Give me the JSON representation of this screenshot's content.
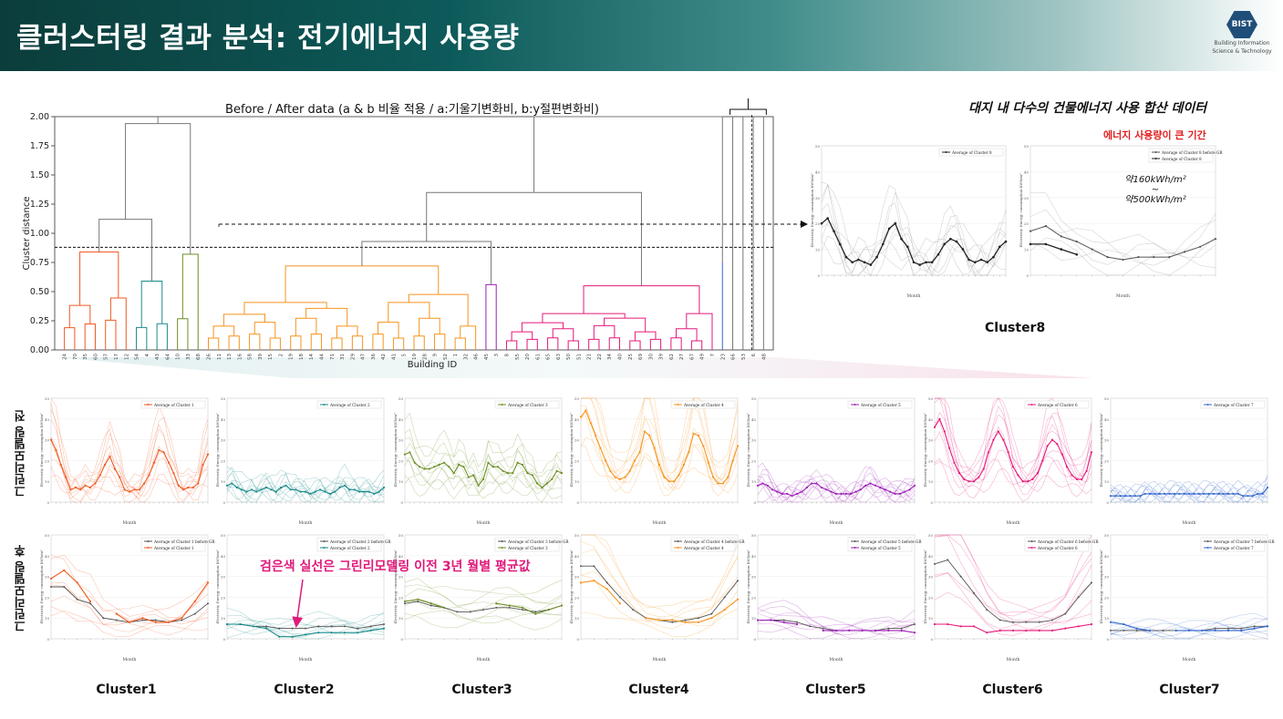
{
  "header": {
    "title": "클러스터링 결과 분석: 전기에너지 사용량",
    "logo_text": "BIST",
    "logo_line1": "Building Information",
    "logo_line2": "Science & Technology"
  },
  "annotations": {
    "site_data": "대지 내 다수의 건물에너지 사용 합산 데이터",
    "high_usage_period": "에너지 사용량이 큰 기간",
    "range_top": "약160kWh/m²",
    "range_tilde": "~",
    "range_bottom": "약500kWh/m²",
    "black_line_note": "검은색 실선은 그린리모델링 이전 3년 월별 평균값",
    "row_before": "그린리모델링 전",
    "row_after": "그린리모델링 후"
  },
  "cluster_labels": [
    "Cluster1",
    "Cluster2",
    "Cluster3",
    "Cluster4",
    "Cluster5",
    "Cluster6",
    "Cluster7"
  ],
  "cluster8_label": "Cluster8",
  "colors": {
    "c1": "#f05a22",
    "c2": "#1a8a8a",
    "c3": "#6b8e23",
    "c4": "#f7941d",
    "c5": "#9b1fb5",
    "c6": "#e6197a",
    "c7": "#3366cc",
    "c8": "#222222",
    "before_gr": "#555555"
  },
  "chart_data": [
    {
      "type": "dendrogram",
      "title": "Before / After data (a & b 비율 적용 / a:기울기변화비, b:y절편변화비)",
      "xlabel": "Building ID",
      "ylabel": "Cluster distance",
      "ylim": [
        0,
        2.0
      ],
      "yticks": [
        "0.00",
        "0.25",
        "0.50",
        "0.75",
        "1.00",
        "1.25",
        "1.50",
        "1.75",
        "2.00"
      ],
      "cut_height": 0.88,
      "clusters": [
        {
          "name": "Cluster1",
          "color": "#f05a22",
          "merge_height": 0.84,
          "leaves": [
            "24",
            "70",
            "35",
            "60",
            "57",
            "17",
            "12"
          ]
        },
        {
          "name": "Cluster2",
          "color": "#1a8a8a",
          "merge_height": 0.59,
          "leaves": [
            "54",
            "4",
            "43",
            "64"
          ]
        },
        {
          "name": "Cluster3",
          "color": "#6b8e23",
          "merge_height": 0.82,
          "leaves": [
            "10",
            "33",
            "68"
          ]
        },
        {
          "name": "Cluster4",
          "color": "#f7941d",
          "merge_height": 0.72,
          "leaves": [
            "26",
            "11",
            "13",
            "16",
            "58",
            "39",
            "15",
            "2",
            "19",
            "18",
            "14",
            "44",
            "71",
            "31",
            "29",
            "47",
            "36",
            "42",
            "41",
            "5",
            "19",
            "28",
            "9",
            "52",
            "1",
            "32",
            "46"
          ]
        },
        {
          "name": "Cluster5",
          "color": "#9b1fb5",
          "merge_height": 0.56,
          "leaves": [
            "45",
            "3"
          ]
        },
        {
          "name": "Cluster6",
          "color": "#e6197a",
          "merge_height": 0.55,
          "leaves": [
            "8",
            "55",
            "20",
            "61",
            "65",
            "63",
            "50",
            "51",
            "21",
            "22",
            "34",
            "40",
            "25",
            "69",
            "30",
            "39",
            "62",
            "27",
            "67",
            "49",
            "7"
          ]
        },
        {
          "name": "Cluster7",
          "color": "#3366cc",
          "merge_height": 0.75,
          "leaves": [
            "23"
          ]
        },
        {
          "name": "Cluster8",
          "color": "#555555",
          "merge_height": 0.0,
          "leaves": [
            "66",
            "53",
            "6",
            "48"
          ]
        }
      ]
    },
    {
      "type": "line",
      "panel": "cluster8-before",
      "legend": [
        "Average of Cluster 8"
      ],
      "ylabel": "Electricity Energy consumption kWh/m²",
      "xlabel": "Month",
      "ylim": [
        0,
        50
      ],
      "series": [
        {
          "name": "Average of Cluster 8",
          "values": [
            20,
            22,
            17,
            12,
            7,
            5,
            6,
            5,
            4,
            7,
            12,
            18,
            20,
            14,
            11,
            5,
            4,
            5,
            5,
            8,
            12,
            14,
            13,
            10,
            6,
            5,
            6,
            5,
            7,
            11,
            13
          ]
        }
      ]
    },
    {
      "type": "line",
      "panel": "cluster8-after",
      "legend": [
        "Average of Cluster 8 before GR",
        "Average of Cluster 8"
      ],
      "ylabel": "Electricity Energy consumption kWh/m²",
      "xlabel": "Month",
      "ylim": [
        0,
        50
      ],
      "series": [
        {
          "name": "Average of Cluster 8 before GR",
          "values": [
            17,
            19,
            15,
            13,
            10,
            7,
            6,
            7,
            7,
            7,
            9,
            11,
            14
          ]
        },
        {
          "name": "Average of Cluster 8",
          "values": [
            12,
            12,
            10,
            8
          ]
        }
      ]
    },
    {
      "type": "line",
      "panels_before": [
        {
          "cluster": "Cluster1",
          "legend": "Average of Cluster 1",
          "values": [
            30,
            25,
            18,
            12,
            6,
            7,
            6,
            8,
            7,
            9,
            13,
            18,
            22,
            16,
            12,
            6,
            5,
            6,
            6,
            9,
            13,
            19,
            25,
            24,
            19,
            14,
            8,
            6,
            7,
            7,
            9,
            18,
            23
          ]
        },
        {
          "cluster": "Cluster2",
          "legend": "Average of Cluster 2",
          "values": [
            8,
            9,
            7,
            6,
            5,
            6,
            5,
            6,
            7,
            6,
            5,
            7,
            8,
            6,
            6,
            5,
            5,
            4,
            5,
            6,
            5,
            4,
            5,
            7,
            8,
            6,
            6,
            5,
            5,
            5,
            4,
            5,
            7
          ]
        },
        {
          "cluster": "Cluster3",
          "legend": "Average of Cluster 3",
          "values": [
            23,
            24,
            19,
            17,
            16,
            16,
            17,
            18,
            19,
            17,
            14,
            18,
            17,
            12,
            13,
            8,
            11,
            19,
            17,
            17,
            15,
            14,
            14,
            19,
            18,
            14,
            13,
            9,
            7,
            9,
            11,
            15,
            14
          ]
        },
        {
          "cluster": "Cluster4",
          "legend": "Average of Cluster 4",
          "values": [
            41,
            44,
            38,
            32,
            26,
            20,
            15,
            12,
            11,
            12,
            15,
            20,
            24,
            34,
            32,
            26,
            18,
            12,
            10,
            10,
            13,
            18,
            24,
            33,
            32,
            27,
            19,
            12,
            9,
            9,
            12,
            20,
            27
          ]
        },
        {
          "cluster": "Cluster5",
          "legend": "Average of Cluster 5",
          "values": [
            8,
            9,
            8,
            6,
            5,
            4,
            4,
            3,
            4,
            5,
            7,
            9,
            9,
            7,
            6,
            5,
            4,
            4,
            4,
            4,
            5,
            6,
            8,
            9,
            8,
            7,
            6,
            5,
            4,
            4,
            5,
            6,
            8
          ]
        },
        {
          "cluster": "Cluster6",
          "legend": "Average of Cluster 6",
          "values": [
            36,
            40,
            34,
            26,
            19,
            14,
            11,
            10,
            10,
            12,
            16,
            24,
            30,
            34,
            30,
            24,
            17,
            13,
            10,
            10,
            11,
            14,
            20,
            27,
            30,
            28,
            23,
            17,
            13,
            11,
            11,
            15,
            24
          ]
        },
        {
          "cluster": "Cluster7",
          "legend": "Average of Cluster 7",
          "values": [
            3,
            3,
            3,
            3,
            3,
            3,
            3,
            4,
            4,
            4,
            4,
            4,
            4,
            4,
            4,
            4,
            4,
            4,
            4,
            4,
            4,
            4,
            4,
            4,
            4,
            4,
            4,
            3,
            3,
            3,
            4,
            4,
            7
          ]
        }
      ],
      "panels_after": [
        {
          "cluster": "Cluster1",
          "legend": [
            "Average of Cluster 1 before GR",
            "Average of Cluster 1"
          ],
          "before_gr": [
            25,
            25,
            19,
            17,
            10,
            9,
            8,
            9,
            9,
            8,
            9,
            12,
            17
          ],
          "after": [
            29,
            33,
            27,
            18,
            null,
            12,
            8,
            10,
            8,
            8,
            10,
            18,
            27
          ]
        },
        {
          "cluster": "Cluster2",
          "legend": [
            "Average of Cluster 2 before GR",
            "Average of Cluster 2"
          ],
          "before_gr": [
            7,
            7,
            6,
            6,
            5,
            5,
            5,
            6,
            6,
            6,
            5,
            6,
            7
          ],
          "after": [
            7,
            7,
            6,
            5,
            1,
            1,
            2,
            3,
            3,
            3,
            3,
            4,
            5
          ]
        },
        {
          "cluster": "Cluster3",
          "legend": [
            "Average of Cluster 3 before GR",
            "Average of Cluster 3"
          ],
          "before_gr": [
            17,
            18,
            16,
            15,
            13,
            13,
            14,
            15,
            15,
            14,
            13,
            14,
            16
          ],
          "after": [
            18,
            19,
            17,
            15,
            null,
            null,
            null,
            17,
            16,
            15,
            12,
            14,
            16
          ]
        },
        {
          "cluster": "Cluster4",
          "legend": [
            "Average of Cluster 4 before GR",
            "Average of Cluster 4"
          ],
          "before_gr": [
            35,
            35,
            27,
            20,
            14,
            10,
            9,
            8,
            9,
            10,
            12,
            20,
            28
          ],
          "after": [
            27,
            28,
            24,
            17,
            null,
            10,
            9,
            9,
            8,
            8,
            10,
            14,
            19
          ]
        },
        {
          "cluster": "Cluster5",
          "legend": [
            "Average of Cluster 5 before GR",
            "Average of Cluster 5"
          ],
          "before_gr": [
            9,
            9,
            9,
            8,
            6,
            5,
            4,
            4,
            4,
            4,
            5,
            5,
            7
          ],
          "after": [
            9,
            9,
            8,
            7,
            null,
            4,
            4,
            4,
            4,
            4,
            4,
            4,
            3
          ]
        },
        {
          "cluster": "Cluster6",
          "legend": [
            "Average of Cluster 6 before GR",
            "Average of Cluster 6"
          ],
          "before_gr": [
            36,
            38,
            30,
            22,
            14,
            9,
            8,
            8,
            8,
            9,
            12,
            20,
            27
          ],
          "after": [
            7,
            7,
            6,
            6,
            3,
            4,
            4,
            4,
            4,
            4,
            5,
            6,
            7
          ]
        },
        {
          "cluster": "Cluster7",
          "legend": [
            "Average of Cluster 7 before GR",
            "Average of Cluster 7"
          ],
          "before_gr": [
            4,
            4,
            4,
            4,
            4,
            4,
            4,
            4,
            5,
            5,
            5,
            6,
            6
          ],
          "after": [
            8,
            7,
            5,
            4,
            null,
            4,
            4,
            4,
            4,
            4,
            4,
            5,
            6
          ]
        }
      ]
    }
  ]
}
